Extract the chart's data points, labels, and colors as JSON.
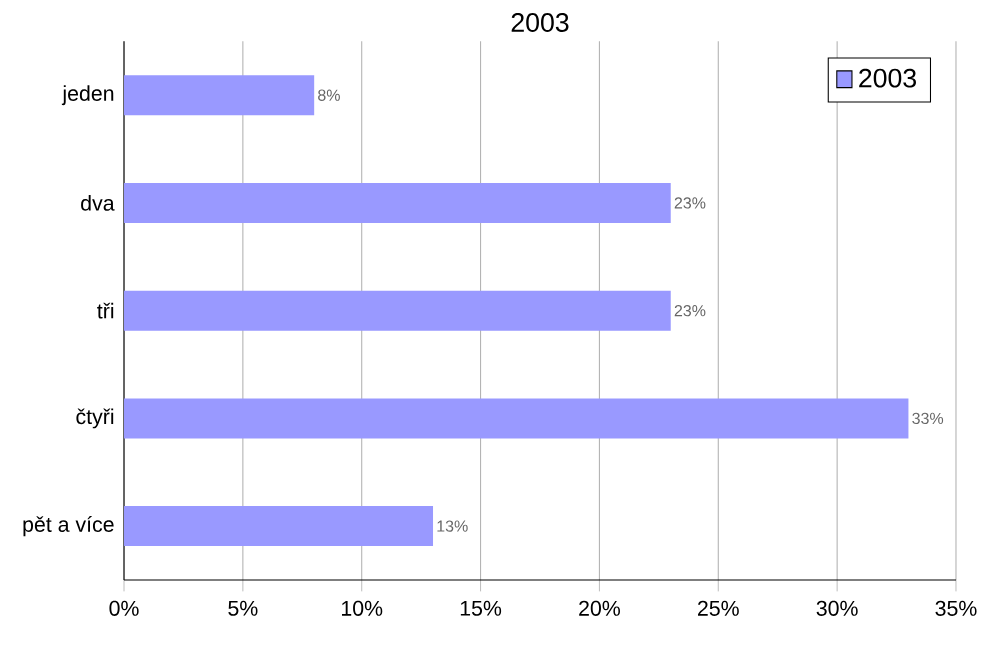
{
  "chart_data": {
    "type": "bar",
    "orientation": "horizontal",
    "title": "2003",
    "categories": [
      "jeden",
      "dva",
      "tři",
      "čtyři",
      "pět a více"
    ],
    "series": [
      {
        "name": "2003",
        "color": "#9999ff",
        "values": [
          8,
          23,
          23,
          33,
          13
        ],
        "value_labels": [
          "8%",
          "23%",
          "23%",
          "33%",
          "13%"
        ]
      }
    ],
    "xlim": [
      0,
      35
    ],
    "xticks": [
      {
        "value": 0,
        "label": "0%"
      },
      {
        "value": 5,
        "label": "5%"
      },
      {
        "value": 10,
        "label": "10%"
      },
      {
        "value": 15,
        "label": "15%"
      },
      {
        "value": 20,
        "label": "20%"
      },
      {
        "value": 25,
        "label": "25%"
      },
      {
        "value": 30,
        "label": "30%"
      },
      {
        "value": 35,
        "label": "35%"
      }
    ],
    "grid": "x",
    "legend": "top right"
  }
}
